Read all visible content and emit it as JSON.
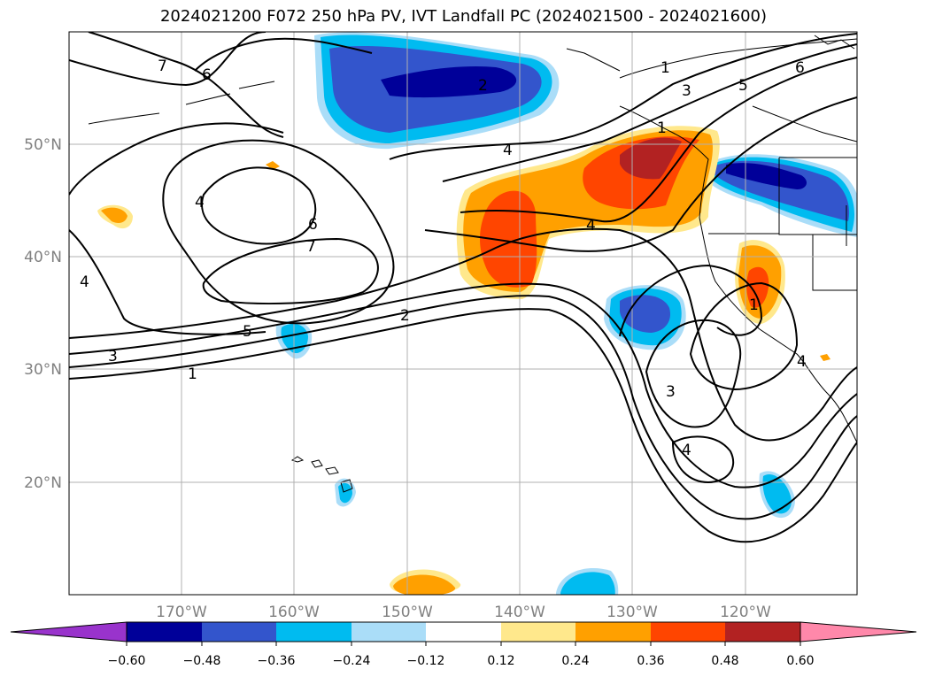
{
  "title": "2024021200 F072 250 hPa PV, IVT Landfall PC (2024021500 - 2024021600)",
  "map": {
    "lon_ticks": [
      "170°W",
      "160°W",
      "150°W",
      "140°W",
      "130°W",
      "120°W"
    ],
    "lat_ticks": [
      "50°N",
      "40°N",
      "30°N",
      "20°N"
    ],
    "pv_contour_labels": [
      "7",
      "6",
      "1",
      "3",
      "5",
      "6",
      "2",
      "4",
      "4",
      "6",
      "7",
      "5",
      "3",
      "1",
      "4",
      "2",
      "4",
      "3",
      "1",
      "4",
      "4",
      "1"
    ],
    "pv_levels": [
      1,
      2,
      3,
      4,
      5,
      6,
      7
    ]
  },
  "colorbar": {
    "tick_labels": [
      "−0.60",
      "−0.48",
      "−0.36",
      "−0.24",
      "−0.12",
      "0.12",
      "0.24",
      "0.36",
      "0.48",
      "0.60"
    ],
    "colors": [
      "#9933cc",
      "#000099",
      "#3355cc",
      "#00bbf0",
      "#aaddf8",
      "#ffffff",
      "#ffe88c",
      "#ffa000",
      "#ff4500",
      "#b22222",
      "#ff88aa"
    ],
    "extend": "both"
  }
}
